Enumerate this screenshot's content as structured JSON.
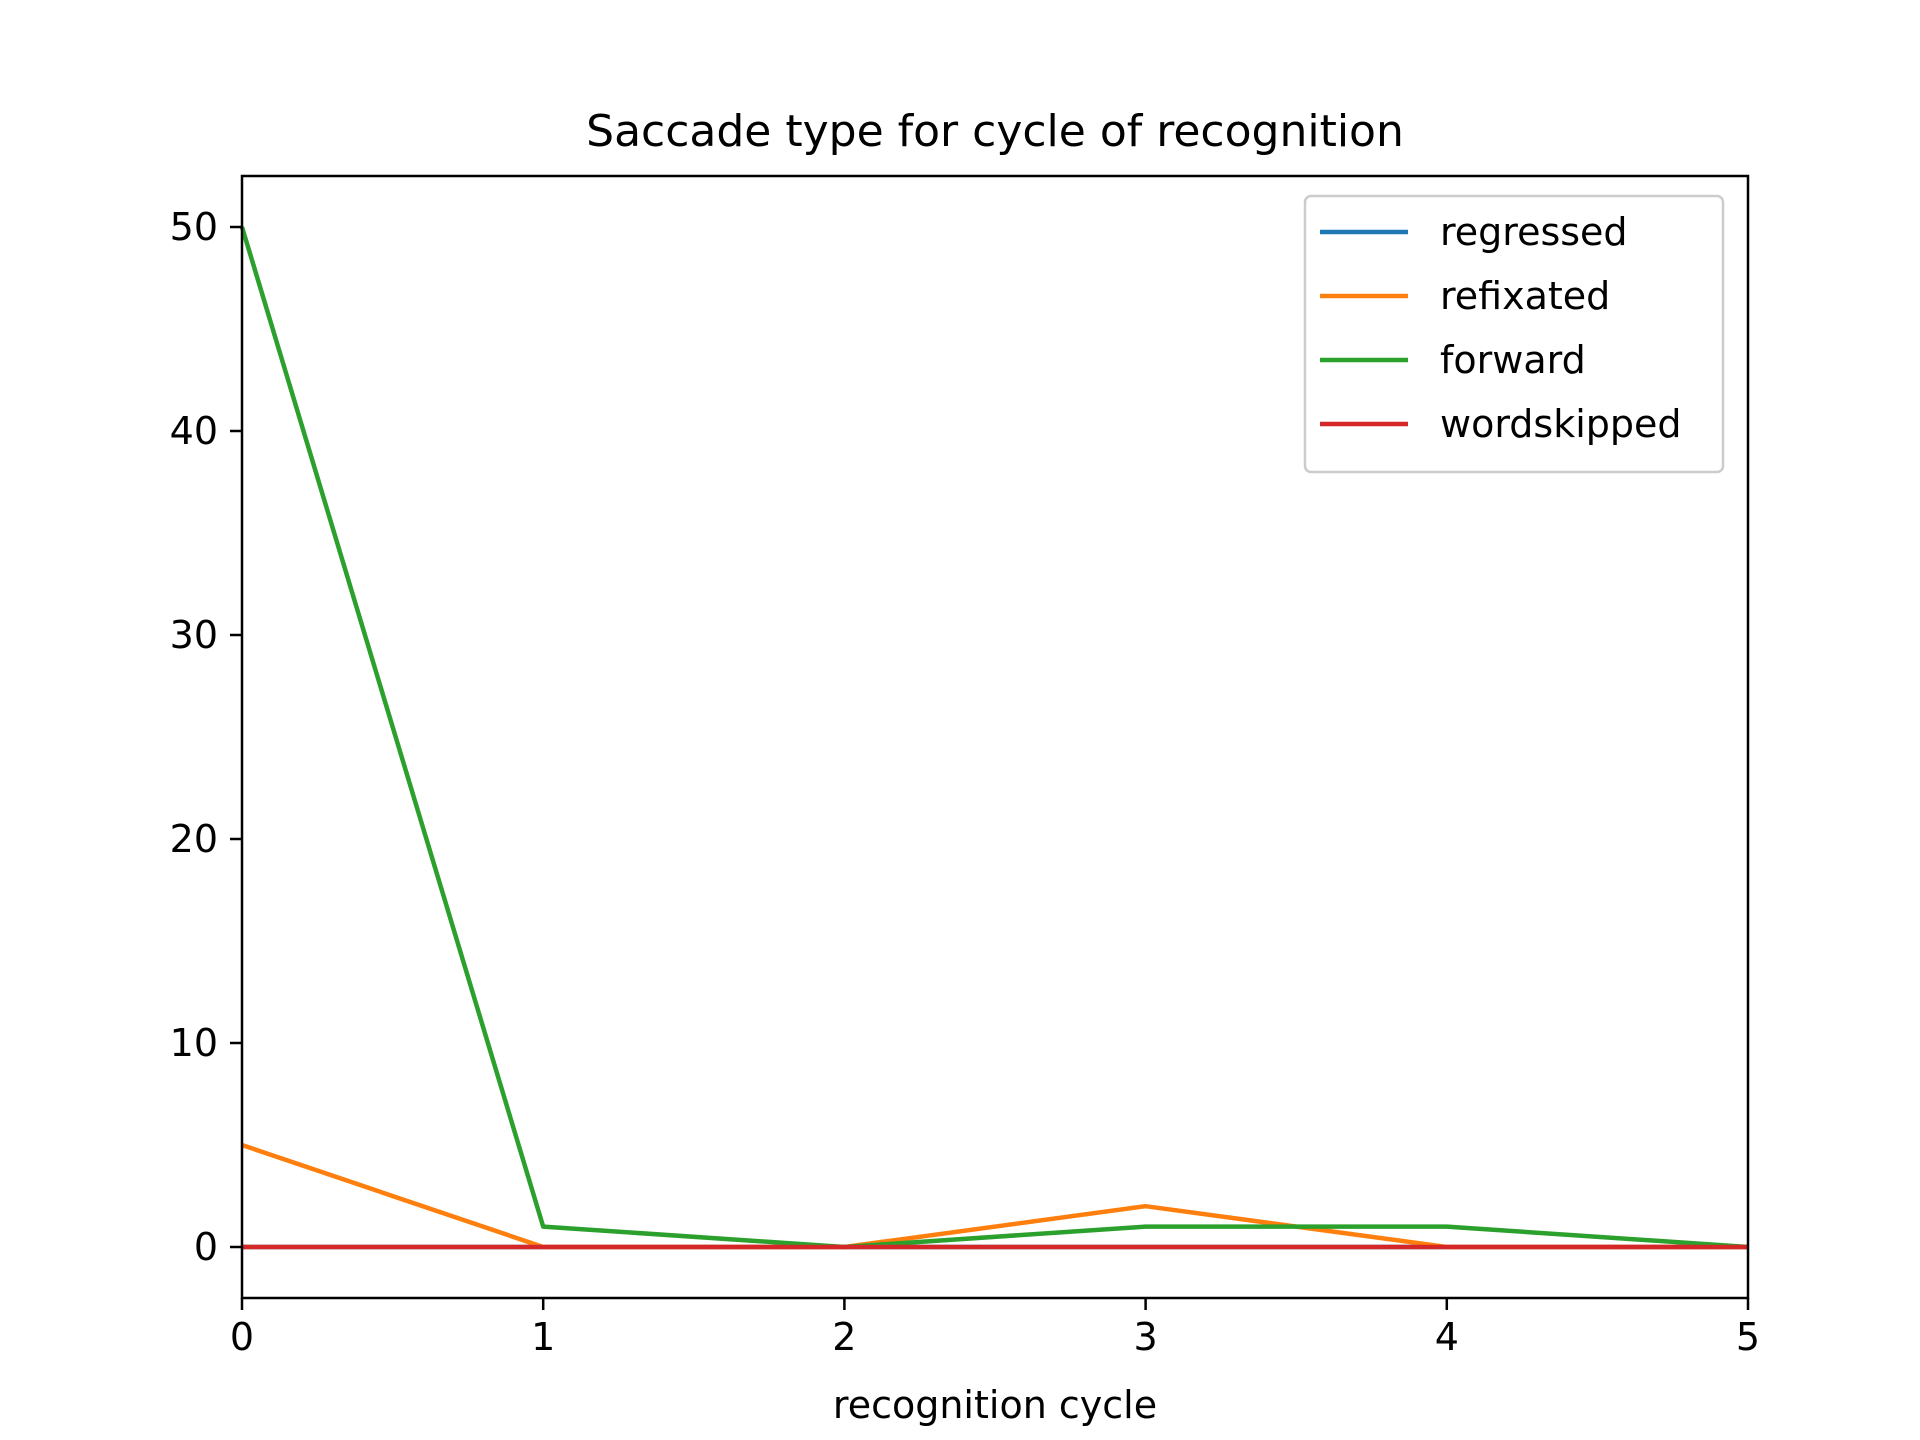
{
  "chart_data": {
    "type": "line",
    "title": "Saccade type for cycle of recognition",
    "xlabel": "recognition cycle",
    "ylabel": "",
    "x": [
      0,
      1,
      2,
      3,
      4,
      5
    ],
    "xlim": [
      0,
      5
    ],
    "ylim": [
      -2.5,
      52.5
    ],
    "x_ticks": [
      "0",
      "1",
      "2",
      "3",
      "4",
      "5"
    ],
    "y_ticks": [
      "0",
      "10",
      "20",
      "30",
      "40",
      "50"
    ],
    "grid": false,
    "legend_position": "top-right",
    "series": [
      {
        "name": "regressed",
        "color": "#1f77b4",
        "values": [
          0,
          0,
          0,
          0,
          0,
          0
        ]
      },
      {
        "name": "refixated",
        "color": "#ff7f0e",
        "values": [
          5,
          0,
          0,
          2,
          0,
          0
        ]
      },
      {
        "name": "forward",
        "color": "#2ca02c",
        "values": [
          50,
          1,
          0,
          1,
          1,
          0
        ]
      },
      {
        "name": "wordskipped",
        "color": "#d62728",
        "values": [
          0,
          0,
          0,
          0,
          0,
          0
        ]
      }
    ]
  }
}
